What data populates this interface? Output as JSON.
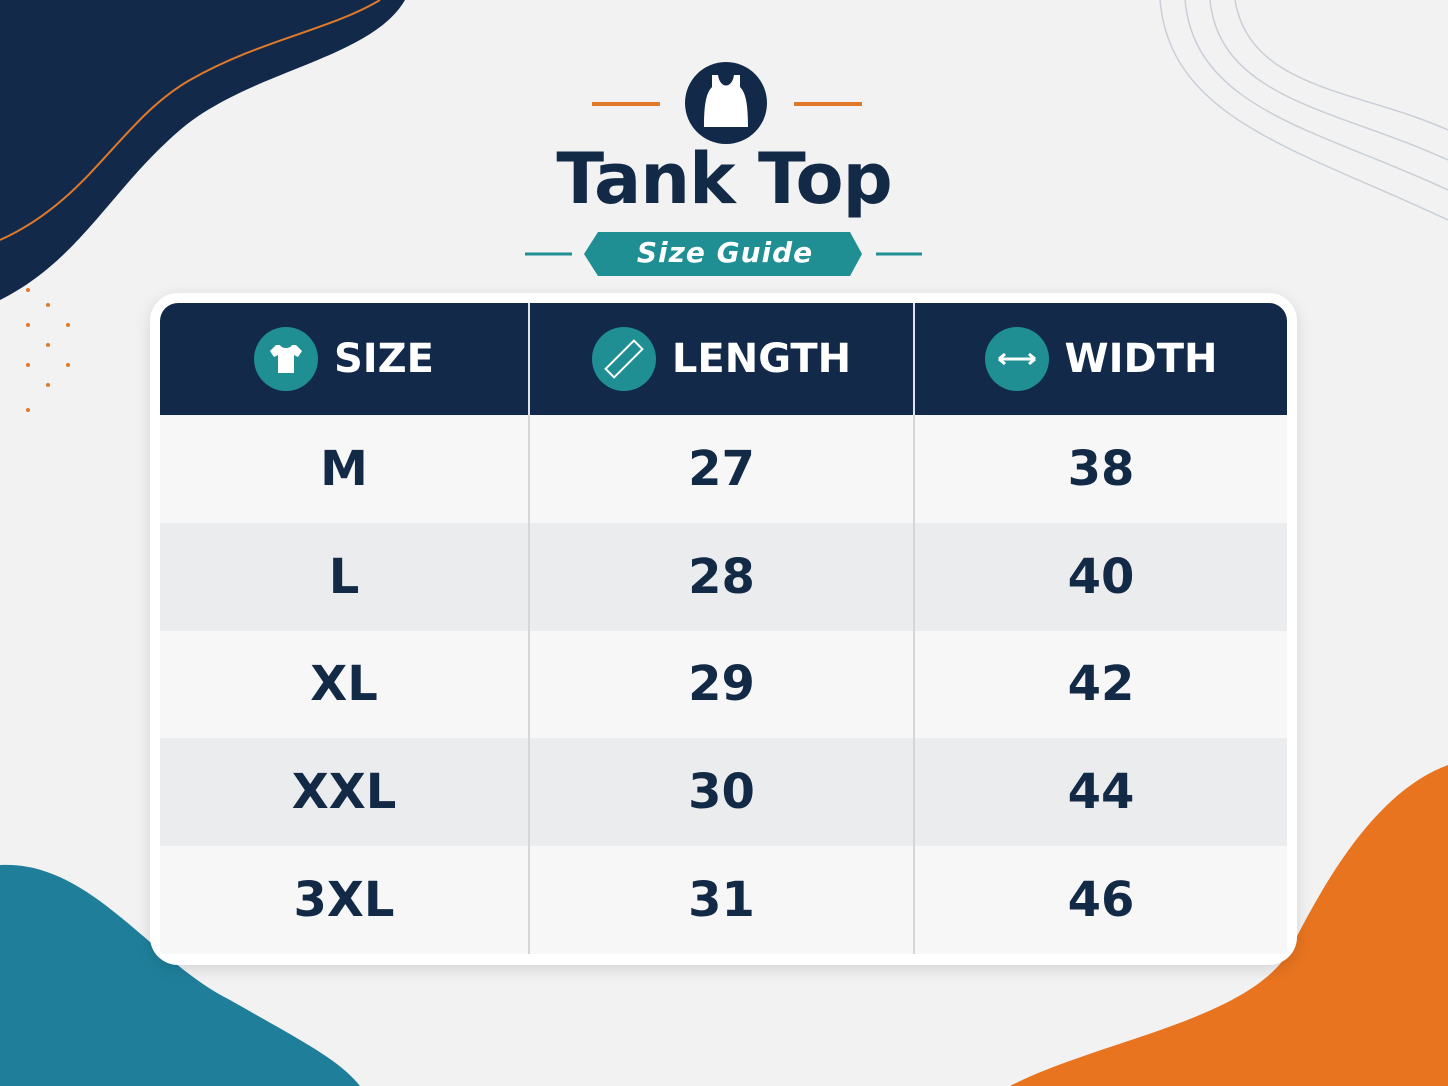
{
  "header": {
    "title": "Tank Top",
    "subtitle": "Size Guide"
  },
  "table": {
    "columns": [
      "SIZE",
      "LENGTH",
      "WIDTH"
    ],
    "rows": [
      [
        "M",
        27,
        38
      ],
      [
        "L",
        28,
        40
      ],
      [
        "XL",
        29,
        42
      ],
      [
        "XXL",
        30,
        44
      ],
      [
        "3XL",
        31,
        46
      ]
    ]
  }
}
